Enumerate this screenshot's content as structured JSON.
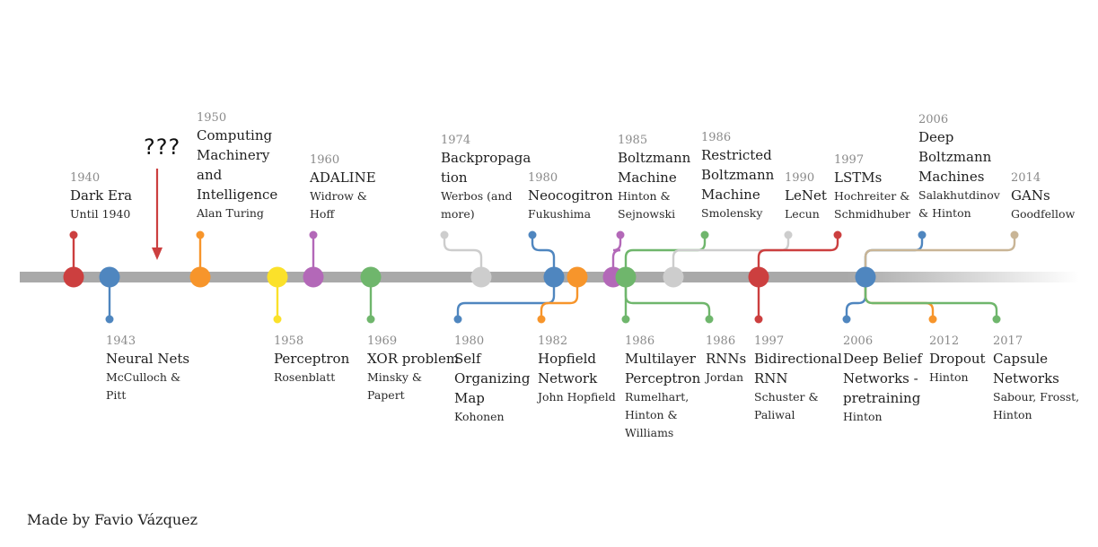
{
  "credit": "Made by Favio Vázquez",
  "mystery_marker": "???",
  "colors": {
    "red": "#cc3f3f",
    "blue": "#4f86bf",
    "orange": "#f7952b",
    "yellow": "#fbe12a",
    "purple": "#b368b8",
    "green": "#6fb66c",
    "lightgray": "#cdcdcd",
    "tan": "#c9b596",
    "bar": "#a9a9a9"
  },
  "events": [
    {
      "id": "dark-era",
      "year": "1940",
      "title": [
        "Dark Era"
      ],
      "authors": [
        "Until 1940"
      ],
      "color": "red",
      "side": "top"
    },
    {
      "id": "neural-nets",
      "year": "1943",
      "title": [
        "Neural Nets"
      ],
      "authors": [
        "McCulloch &",
        "Pitt"
      ],
      "color": "blue",
      "side": "bottom"
    },
    {
      "id": "computing-machinery",
      "year": "1950",
      "title": [
        "Computing",
        "Machinery",
        "and",
        "Intelligence"
      ],
      "authors": [
        "Alan Turing"
      ],
      "color": "orange",
      "side": "top"
    },
    {
      "id": "perceptron",
      "year": "1958",
      "title": [
        "Perceptron"
      ],
      "authors": [
        "Rosenblatt"
      ],
      "color": "yellow",
      "side": "bottom"
    },
    {
      "id": "adaline",
      "year": "1960",
      "title": [
        "ADALINE"
      ],
      "authors": [
        "Widrow &",
        "Hoff"
      ],
      "color": "purple",
      "side": "top"
    },
    {
      "id": "xor-problem",
      "year": "1969",
      "title": [
        "XOR problem"
      ],
      "authors": [
        "Minsky &",
        "Papert"
      ],
      "color": "green",
      "side": "bottom"
    },
    {
      "id": "backpropagation",
      "year": "1974",
      "title": [
        "Backpropaga",
        "tion"
      ],
      "authors": [
        "Werbos (and",
        "more)"
      ],
      "color": "lightgray",
      "side": "top"
    },
    {
      "id": "self-organizing-map",
      "year": "1980",
      "title": [
        "Self",
        "Organizing",
        "Map"
      ],
      "authors": [
        "Kohonen"
      ],
      "color": "blue",
      "side": "bottom"
    },
    {
      "id": "neocogitron",
      "year": "1980",
      "title": [
        "Neocogitron"
      ],
      "authors": [
        "Fukushima"
      ],
      "color": "blue",
      "side": "top"
    },
    {
      "id": "hopfield-network",
      "year": "1982",
      "title": [
        "Hopfield",
        "Network"
      ],
      "authors": [
        "John Hopfield"
      ],
      "color": "orange",
      "side": "bottom"
    },
    {
      "id": "boltzmann-machine",
      "year": "1985",
      "title": [
        "Boltzmann",
        "Machine"
      ],
      "authors": [
        "Hinton &",
        "Sejnowski"
      ],
      "color": "purple",
      "side": "top"
    },
    {
      "id": "multilayer-perceptron",
      "year": "1986",
      "title": [
        "Multilayer",
        "Perceptron"
      ],
      "authors": [
        "Rumelhart,",
        "Hinton &",
        "Williams"
      ],
      "color": "green",
      "side": "bottom"
    },
    {
      "id": "restricted-boltzmann",
      "year": "1986",
      "title": [
        "Restricted",
        "Boltzmann",
        "Machine"
      ],
      "authors": [
        "Smolensky"
      ],
      "color": "green",
      "side": "top"
    },
    {
      "id": "rnns",
      "year": "1986",
      "title": [
        "RNNs"
      ],
      "authors": [
        "Jordan"
      ],
      "color": "green",
      "side": "bottom"
    },
    {
      "id": "lenet",
      "year": "1990",
      "title": [
        "LeNet"
      ],
      "authors": [
        "Lecun"
      ],
      "color": "lightgray",
      "side": "top"
    },
    {
      "id": "lstms",
      "year": "1997",
      "title": [
        "LSTMs"
      ],
      "authors": [
        "Hochreiter &",
        "Schmidhuber"
      ],
      "color": "red",
      "side": "top"
    },
    {
      "id": "bidirectional-rnn",
      "year": "1997",
      "title": [
        "Bidirectional",
        "RNN"
      ],
      "authors": [
        "Schuster &",
        "Paliwal"
      ],
      "color": "red",
      "side": "bottom"
    },
    {
      "id": "deep-boltzmann",
      "year": "2006",
      "title": [
        "Deep",
        "Boltzmann",
        "Machines"
      ],
      "authors": [
        "Salakhutdinov",
        "& Hinton"
      ],
      "color": "blue",
      "side": "top"
    },
    {
      "id": "deep-belief-networks",
      "year": "2006",
      "title": [
        "Deep Belief",
        "Networks -",
        "pretraining"
      ],
      "authors": [
        "Hinton"
      ],
      "color": "blue",
      "side": "bottom"
    },
    {
      "id": "dropout",
      "year": "2012",
      "title": [
        "Dropout"
      ],
      "authors": [
        "Hinton"
      ],
      "color": "orange",
      "side": "bottom"
    },
    {
      "id": "gans",
      "year": "2014",
      "title": [
        "GANs"
      ],
      "authors": [
        "Goodfellow"
      ],
      "color": "tan",
      "side": "top"
    },
    {
      "id": "capsule-networks",
      "year": "2017",
      "title": [
        "Capsule",
        "Networks"
      ],
      "authors": [
        "Sabour, Frosst,",
        "Hinton"
      ],
      "color": "green",
      "side": "bottom"
    }
  ]
}
